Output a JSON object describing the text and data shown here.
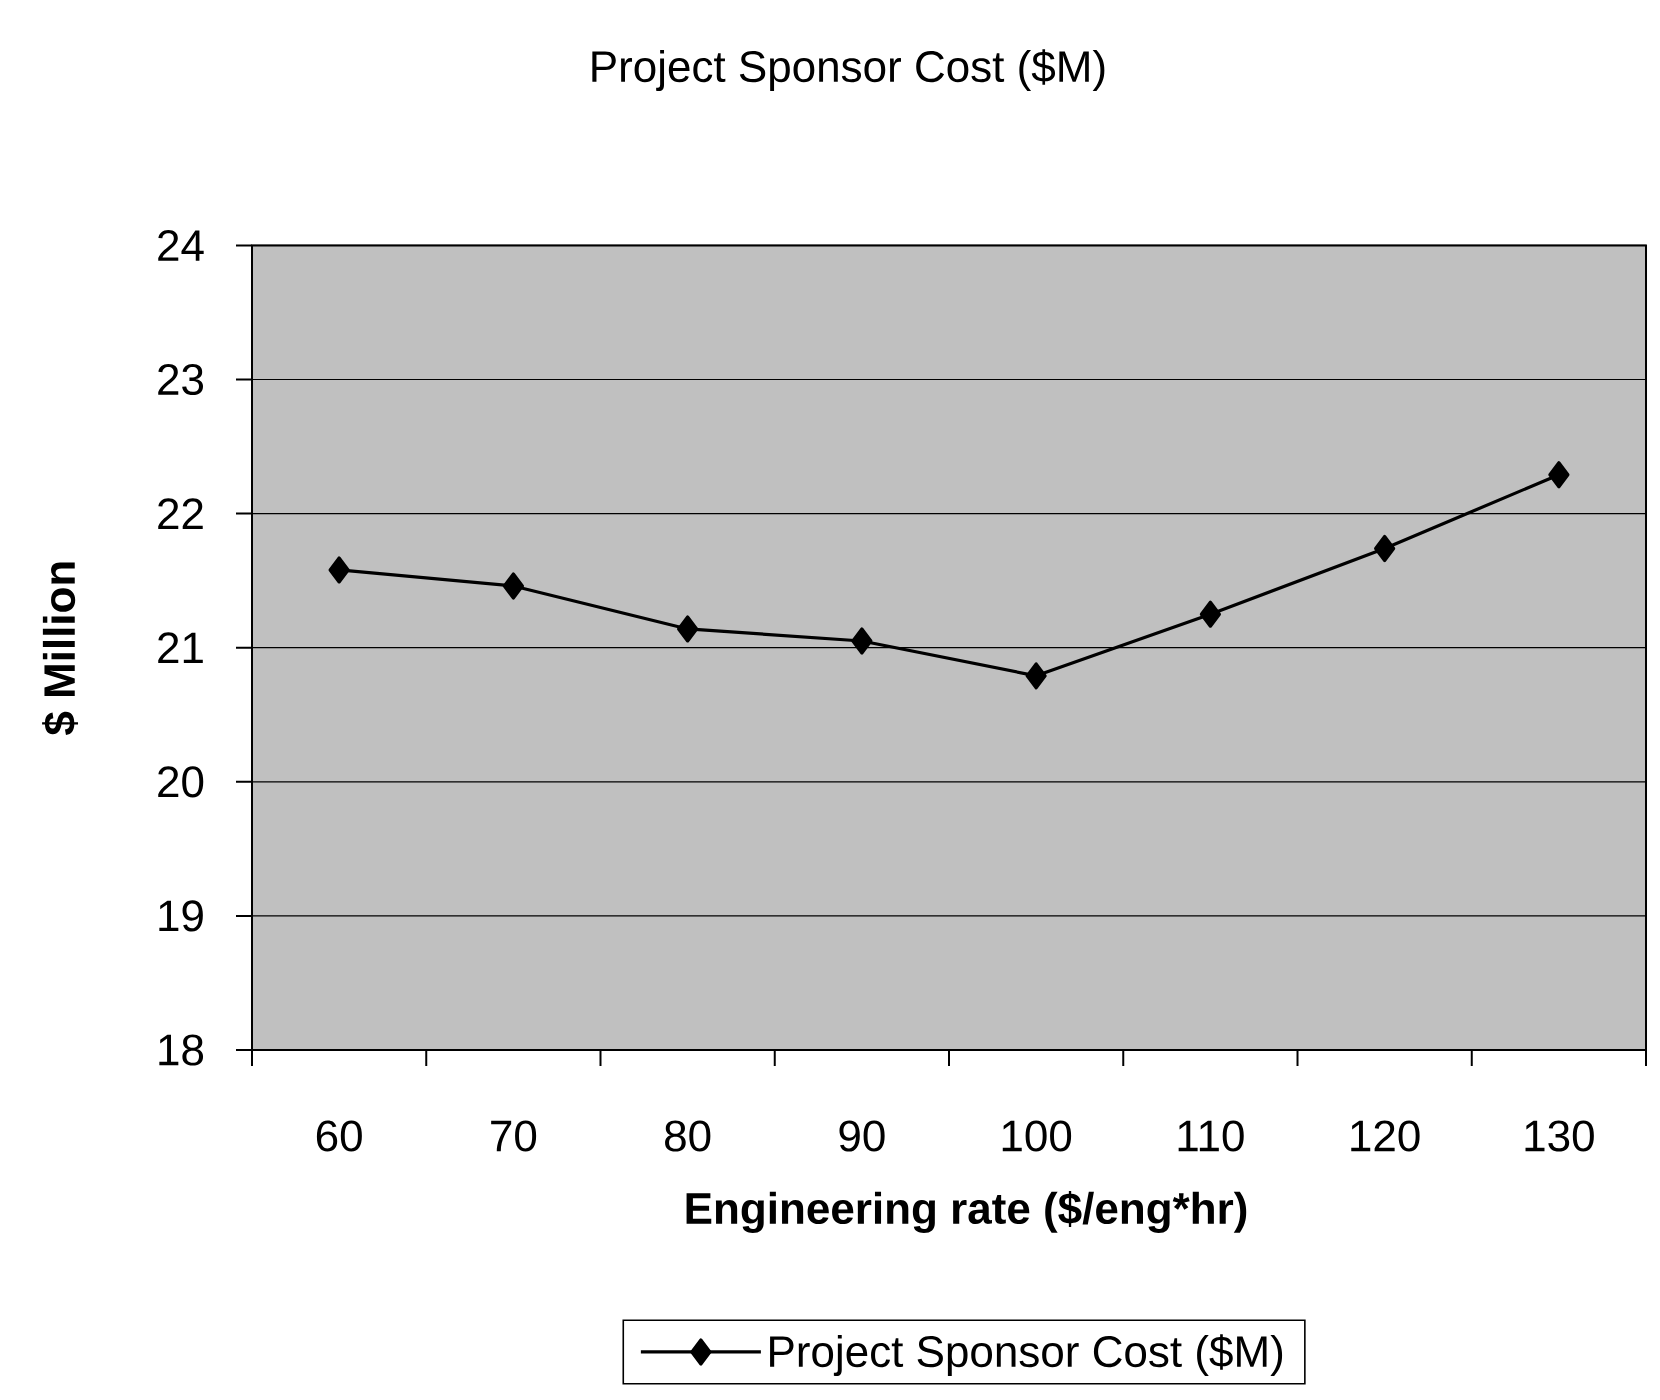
{
  "chart_data": {
    "type": "line",
    "title": "Project Sponsor Cost ($M)",
    "xlabel": "Engineering rate ($/eng*hr)",
    "ylabel": "$ Million",
    "categories": [
      "60",
      "70",
      "80",
      "90",
      "100",
      "110",
      "120",
      "130"
    ],
    "series": [
      {
        "name": "Project Sponsor Cost ($M)",
        "color": "#000000",
        "values": [
          21.58,
          21.46,
          21.14,
          21.05,
          20.79,
          21.25,
          21.74,
          22.29
        ]
      }
    ],
    "ylim": [
      18,
      24
    ],
    "yticks": [
      18,
      19,
      20,
      21,
      22,
      23,
      24
    ],
    "grid": "y",
    "legend": "bottom",
    "marker": "diamond",
    "line_style": "solid"
  }
}
